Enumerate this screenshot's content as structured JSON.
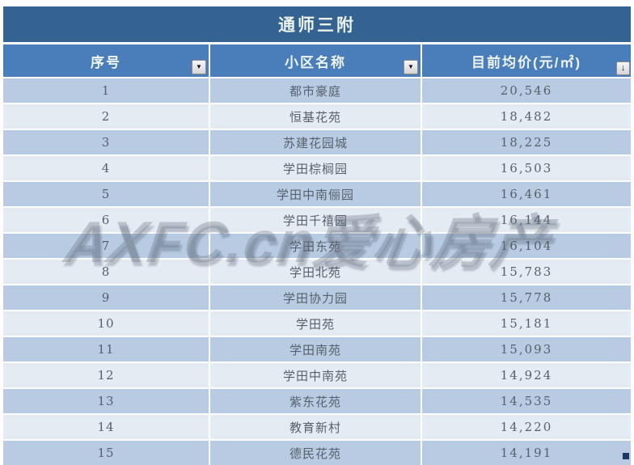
{
  "title": "通师三附",
  "columns": [
    {
      "label": "序号",
      "control": "filter-dropdown",
      "icon": "▼"
    },
    {
      "label": "小区名称",
      "control": "filter-dropdown",
      "icon": "▼"
    },
    {
      "label": "目前均价(元/㎡)",
      "control": "sort-descending",
      "icon": "↓"
    }
  ],
  "rows": [
    {
      "index": "1",
      "name": "都市豪庭",
      "price": "20,546"
    },
    {
      "index": "2",
      "name": "恒基花苑",
      "price": "18,482"
    },
    {
      "index": "3",
      "name": "苏建花园城",
      "price": "18,225"
    },
    {
      "index": "4",
      "name": "学田棕榈园",
      "price": "16,503"
    },
    {
      "index": "5",
      "name": "学田中南俪园",
      "price": "16,461"
    },
    {
      "index": "6",
      "name": "学田千禧园",
      "price": "16,144"
    },
    {
      "index": "7",
      "name": "学田东苑",
      "price": "16,104"
    },
    {
      "index": "8",
      "name": "学田北苑",
      "price": "15,783"
    },
    {
      "index": "9",
      "name": "学田协力园",
      "price": "15,778"
    },
    {
      "index": "10",
      "name": "学田苑",
      "price": "15,181"
    },
    {
      "index": "11",
      "name": "学田南苑",
      "price": "15,093"
    },
    {
      "index": "12",
      "name": "学田中南苑",
      "price": "14,924"
    },
    {
      "index": "13",
      "name": "紫东花苑",
      "price": "14,535"
    },
    {
      "index": "14",
      "name": "教育新村",
      "price": "14,220"
    },
    {
      "index": "15",
      "name": "德民花苑",
      "price": "14,191"
    }
  ],
  "watermark": {
    "text": "AXFC.cn爱心房产"
  },
  "colors": {
    "title_bar": "#346392",
    "header_row": "#4a7ebb",
    "row_odd": "#b8cbe2",
    "row_even": "#e5ebf3",
    "cell_text": "#57616d",
    "header_text": "#eef4ee",
    "handle": "#1f3864"
  }
}
